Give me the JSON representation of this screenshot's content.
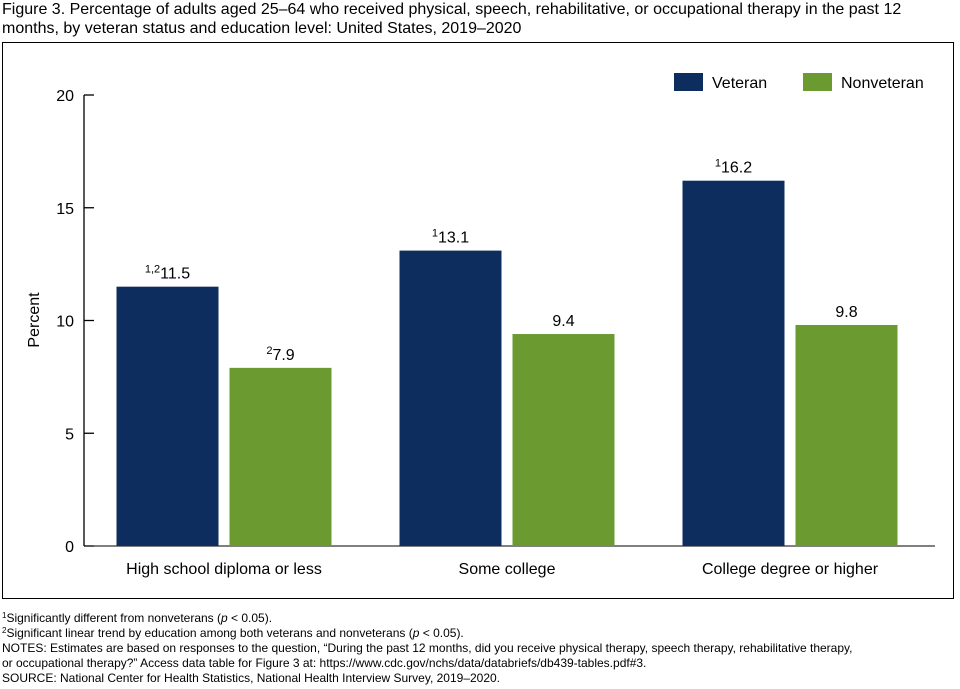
{
  "title": "Figure 3. Percentage of adults aged 25–64 who received physical, speech, rehabilitative, or occupational therapy in the past 12 months, by veteran status and education level: United States, 2019–2020",
  "colors": {
    "veteran": "#0d2d5e",
    "nonveteran": "#6a9a30"
  },
  "chart_data": {
    "type": "bar",
    "title": "",
    "xlabel": "",
    "ylabel": "Percent",
    "ylim": [
      0,
      20
    ],
    "yticks": [
      0,
      5,
      10,
      15,
      20
    ],
    "categories": [
      "High school diploma or less",
      "Some college",
      "College degree or higher"
    ],
    "series": [
      {
        "name": "Veteran",
        "values": [
          11.5,
          13.1,
          16.2
        ],
        "label_superscripts": [
          "1,2",
          "1",
          "1"
        ]
      },
      {
        "name": "Nonveteran",
        "values": [
          7.9,
          9.4,
          9.8
        ],
        "label_superscripts": [
          "2",
          "",
          ""
        ]
      }
    ],
    "legend_position": "top-right",
    "grid": false
  },
  "footnotes": {
    "f1_mark": "1",
    "f1_text_a": "Significantly different from nonveterans (",
    "f1_p": "p",
    "f1_text_b": " < 0.05).",
    "f2_mark": "2",
    "f2_text_a": "Significant linear trend by education among both veterans and nonveterans (",
    "f2_p": "p",
    "f2_text_b": " < 0.05).",
    "notes_line1": "NOTES: Estimates are based on responses to the question, “During the past 12 months, did you receive physical therapy, speech therapy, rehabilitative therapy,",
    "notes_line2": "or occupational therapy?” Access data table for Figure 3 at: https://www.cdc.gov/nchs/data/databriefs/db439-tables.pdf#3.",
    "source": "SOURCE: National Center for Health Statistics, National Health Interview Survey, 2019–2020."
  }
}
